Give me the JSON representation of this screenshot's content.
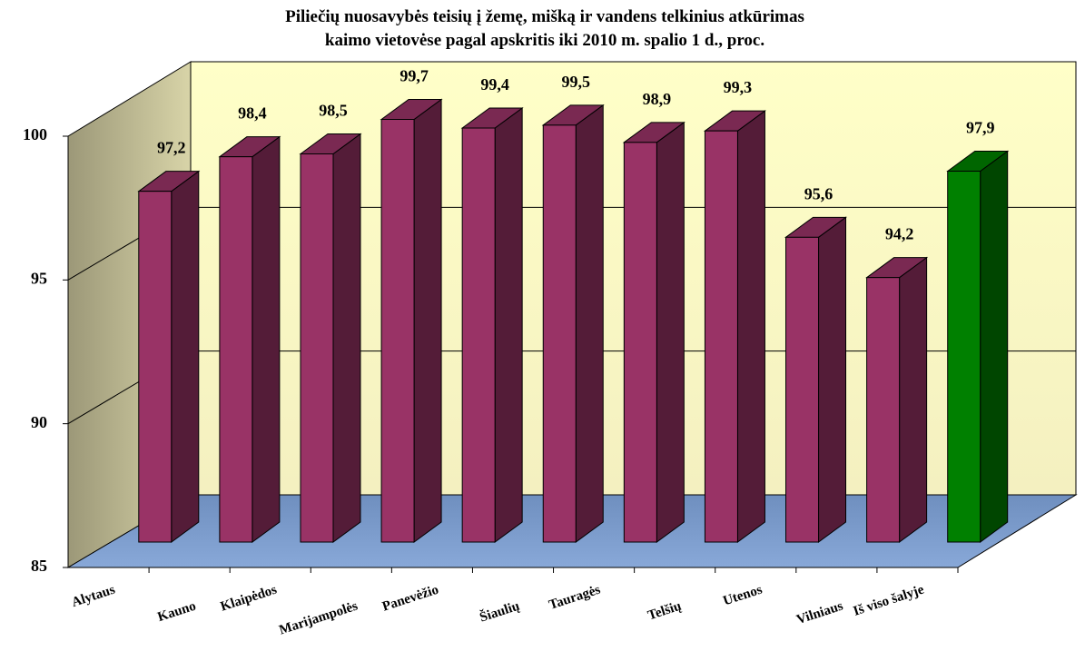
{
  "chart_data": {
    "type": "bar3d",
    "title": [
      "Piliečių nuosavybės teisių į žemę, mišką ir vandens telkinius atkūrimas",
      "kaimo vietovėse pagal apskritis iki 2010 m. spalio 1 d., proc."
    ],
    "categories": [
      "Alytaus",
      "Kauno",
      "Klaipėdos",
      "Marijampolės",
      "Panevėžio",
      "Šiaulių",
      "Tauragės",
      "Telšių",
      "Utenos",
      "Vilniaus",
      "Iš viso šalyje"
    ],
    "values": [
      97.2,
      98.4,
      98.5,
      99.7,
      99.4,
      99.5,
      98.9,
      99.3,
      95.6,
      94.2,
      97.9
    ],
    "value_labels": [
      "97,2",
      "98,4",
      "98,5",
      "99,7",
      "99,4",
      "99,5",
      "98,9",
      "99,3",
      "95,6",
      "94,2",
      "97,9"
    ],
    "colors": [
      "#993366",
      "#993366",
      "#993366",
      "#993366",
      "#993366",
      "#993366",
      "#993366",
      "#993366",
      "#993366",
      "#993366",
      "#008000"
    ],
    "ylim": [
      85,
      100
    ],
    "yticks": [
      85,
      90,
      95,
      100
    ],
    "grid": true
  }
}
